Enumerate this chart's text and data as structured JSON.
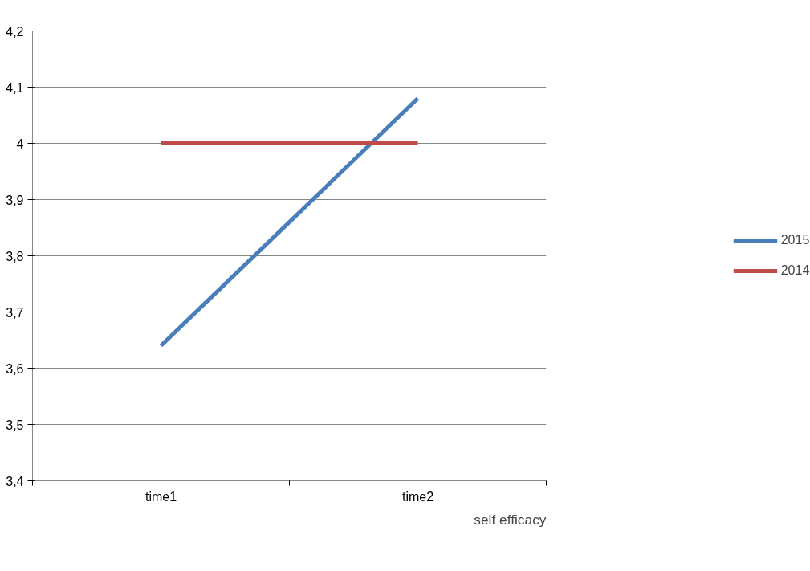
{
  "chart_data": {
    "type": "line",
    "xlabel": "self efficacy",
    "categories": [
      "time1",
      "time2"
    ],
    "series": [
      {
        "name": "2015",
        "color": "#4a7ebb",
        "values": [
          3.64,
          4.08
        ]
      },
      {
        "name": "2014",
        "color": "#be4b48",
        "values": [
          4.0,
          4.0
        ]
      }
    ],
    "ylim": [
      3.4,
      4.2
    ],
    "yticks": [
      {
        "value": 3.4,
        "label": "3,4"
      },
      {
        "value": 3.5,
        "label": "3,5"
      },
      {
        "value": 3.6,
        "label": "3,6"
      },
      {
        "value": 3.7,
        "label": "3,7"
      },
      {
        "value": 3.8,
        "label": "3,8"
      },
      {
        "value": 3.9,
        "label": "3,9"
      },
      {
        "value": 4,
        "label": "4"
      },
      {
        "value": 4.1,
        "label": "4,1"
      },
      {
        "value": 4.2,
        "label": "4,2"
      }
    ],
    "grid": "y",
    "legend": "right",
    "marker": "none",
    "line_style": "solid"
  }
}
